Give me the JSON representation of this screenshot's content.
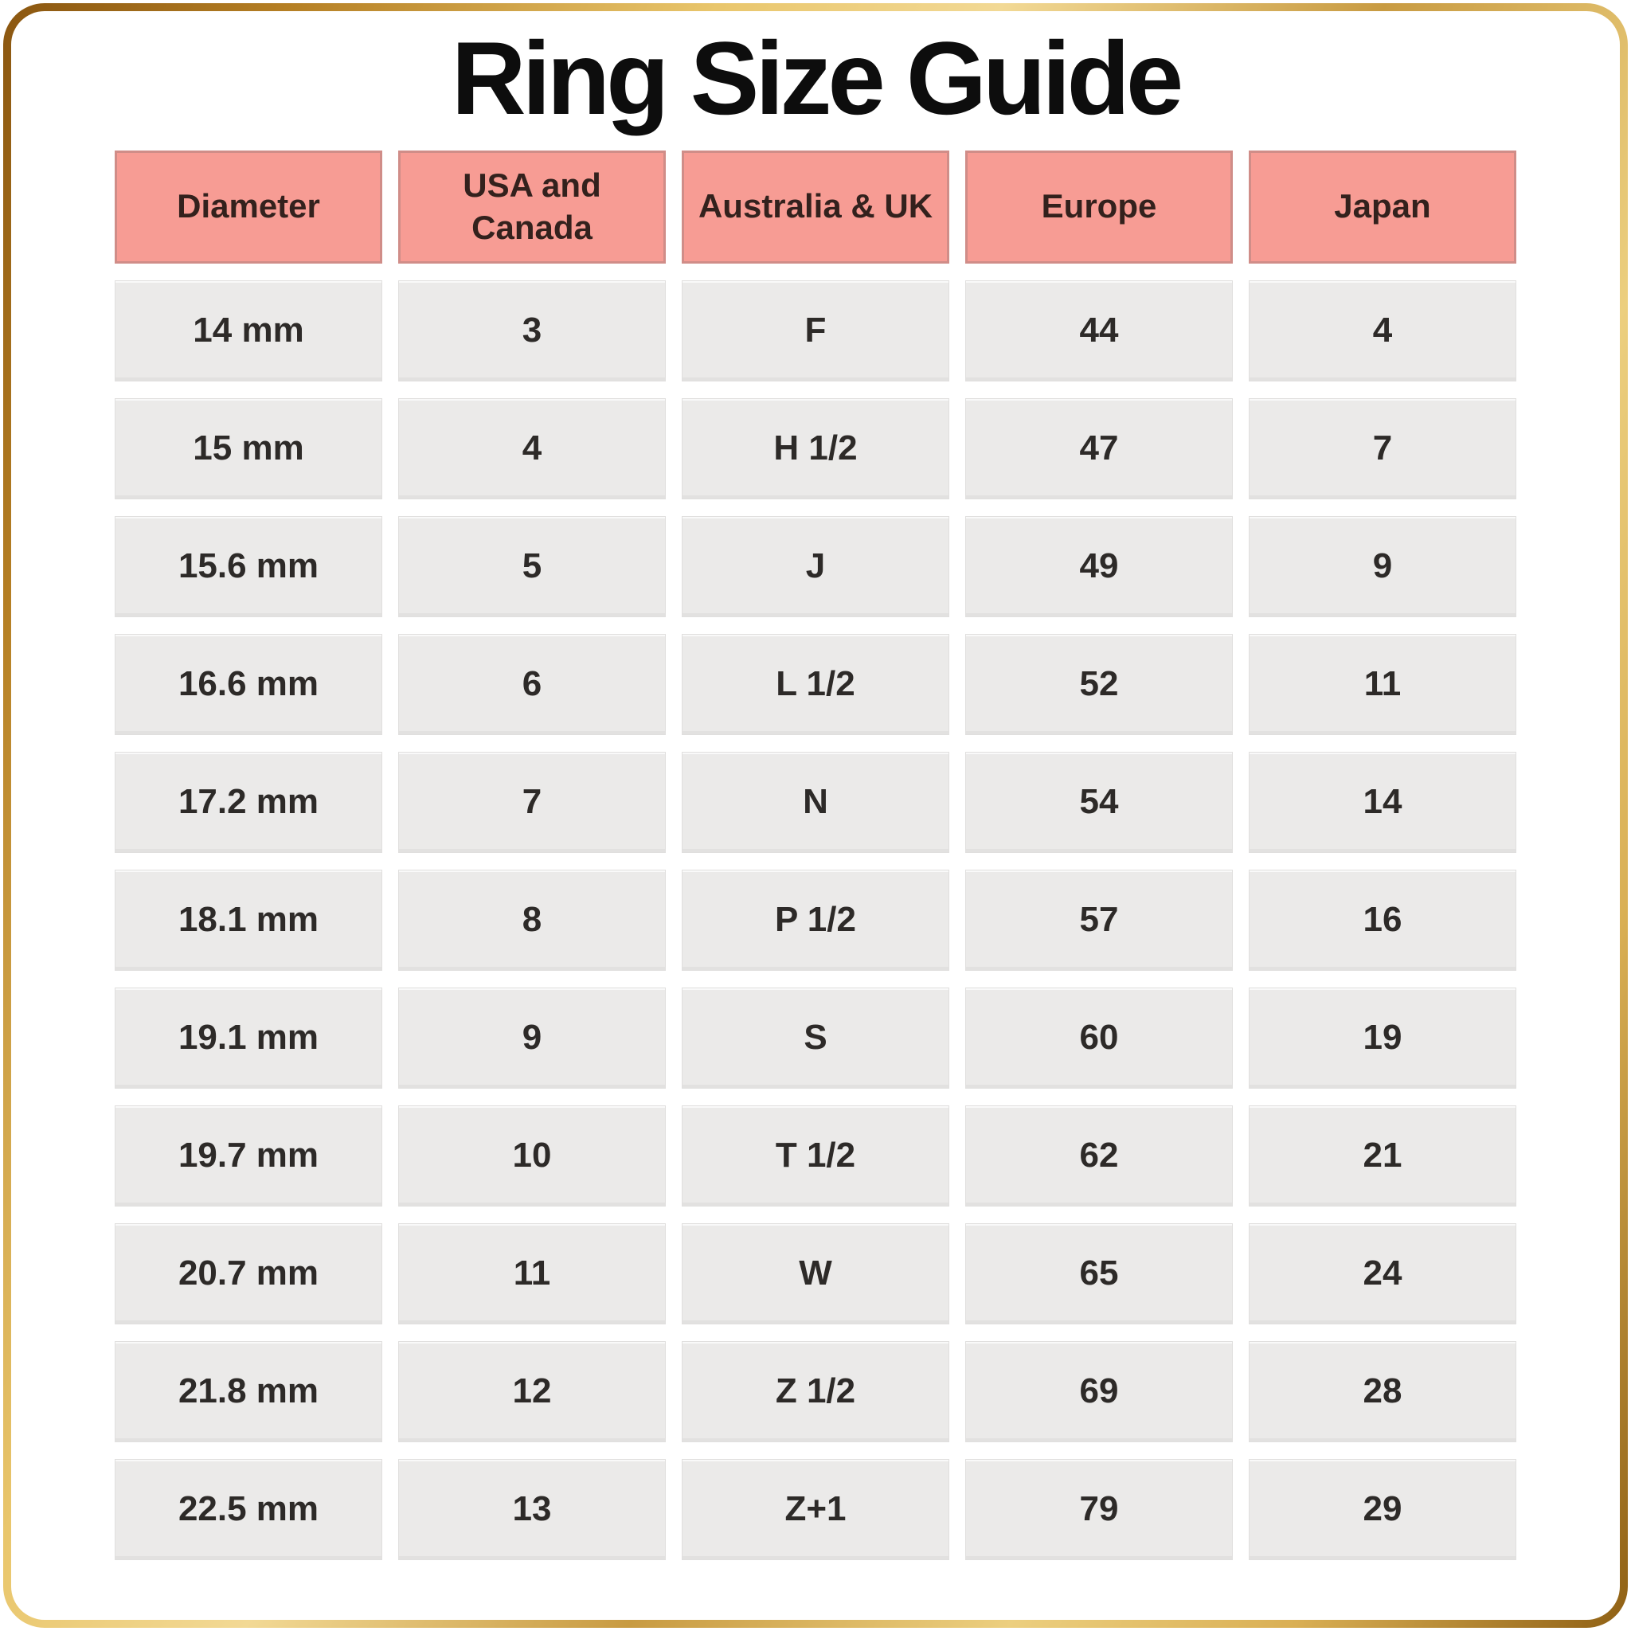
{
  "title": "Ring Size Guide",
  "chart_data": {
    "type": "table",
    "title": "Ring Size Guide",
    "columns": [
      "Diameter",
      "USA and Canada",
      "Australia & UK",
      "Europe",
      "Japan"
    ],
    "rows": [
      [
        "14 mm",
        "3",
        "F",
        "44",
        "4"
      ],
      [
        "15 mm",
        "4",
        "H 1/2",
        "47",
        "7"
      ],
      [
        "15.6 mm",
        "5",
        "J",
        "49",
        "9"
      ],
      [
        "16.6 mm",
        "6",
        "L 1/2",
        "52",
        "11"
      ],
      [
        "17.2 mm",
        "7",
        "N",
        "54",
        "14"
      ],
      [
        "18.1 mm",
        "8",
        "P 1/2",
        "57",
        "16"
      ],
      [
        "19.1 mm",
        "9",
        "S",
        "60",
        "19"
      ],
      [
        "19.7 mm",
        "10",
        "T 1/2",
        "62",
        "21"
      ],
      [
        "20.7 mm",
        "11",
        "W",
        "65",
        "24"
      ],
      [
        "21.8 mm",
        "12",
        "Z 1/2",
        "69",
        "28"
      ],
      [
        "22.5 mm",
        "13",
        "Z+1",
        "79",
        "29"
      ]
    ],
    "layout": {
      "legend": "none",
      "grid": "cell-blocks-with-white-gaps",
      "header_position": "top"
    }
  },
  "colors": {
    "header_cell_bg": "#f79c94",
    "header_cell_border": "#d08d88",
    "data_cell_bg": "#ebeae9",
    "text": "#2d2a28",
    "title_text": "#0d0d0d",
    "frame_gold_dark": "#8a5610",
    "frame_gold_light": "#f2d995",
    "page_bg": "#ffffff"
  }
}
